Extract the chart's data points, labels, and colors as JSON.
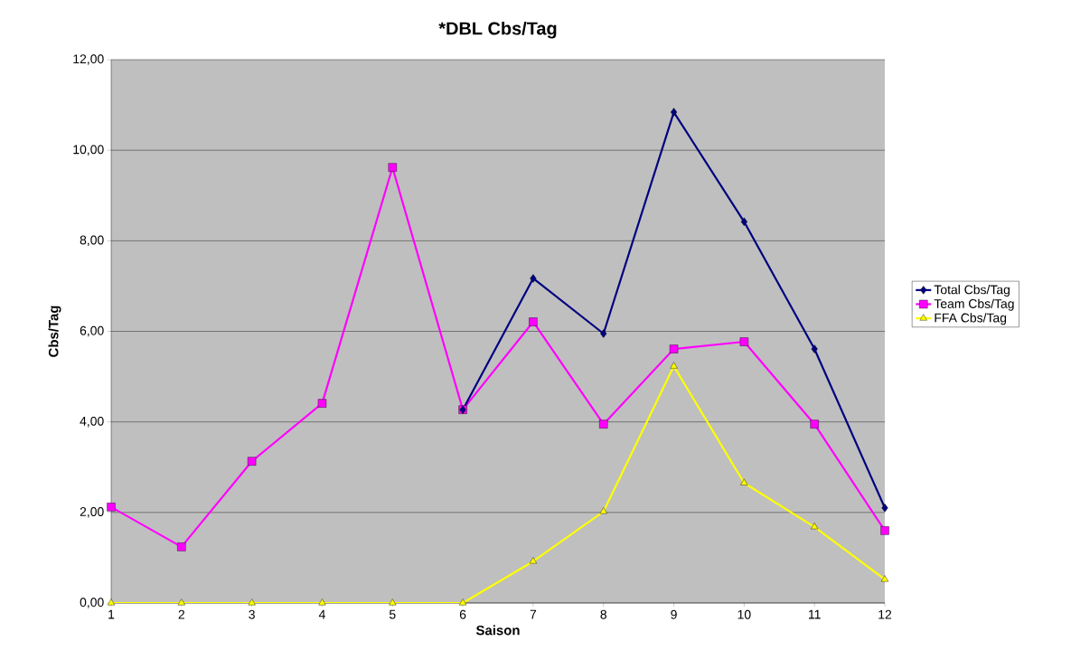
{
  "chart_data": {
    "type": "line",
    "title": "*DBL Cbs/Tag",
    "xlabel": "Saison",
    "ylabel": "Cbs/Tag",
    "categories": [
      "1",
      "2",
      "3",
      "4",
      "5",
      "6",
      "7",
      "8",
      "9",
      "10",
      "11",
      "12"
    ],
    "series": [
      {
        "name": "Total Cbs/Tag",
        "color": "#000080",
        "marker": "diamond",
        "values": [
          null,
          null,
          null,
          null,
          null,
          4.27,
          7.17,
          5.95,
          10.84,
          8.42,
          5.61,
          2.1
        ]
      },
      {
        "name": "Team Cbs/Tag",
        "color": "#ff00ff",
        "marker": "square",
        "values": [
          2.12,
          1.24,
          3.13,
          4.41,
          9.62,
          4.27,
          6.21,
          3.95,
          5.61,
          5.77,
          3.95,
          1.6
        ]
      },
      {
        "name": "FFA Cbs/Tag",
        "color": "#ffff00",
        "marker": "triangle",
        "values": [
          0,
          0,
          0,
          0,
          0,
          0,
          0.92,
          2.02,
          5.23,
          2.65,
          1.68,
          0.52
        ]
      }
    ],
    "ylim": [
      0,
      12
    ],
    "yticks": [
      {
        "value": 0,
        "label": "0,00"
      },
      {
        "value": 2,
        "label": "2,00"
      },
      {
        "value": 4,
        "label": "4,00"
      },
      {
        "value": 6,
        "label": "6,00"
      },
      {
        "value": 8,
        "label": "8,00"
      },
      {
        "value": 10,
        "label": "10,00"
      },
      {
        "value": 12,
        "label": "12,00"
      }
    ],
    "grid": "y",
    "legend": "right",
    "line_style": "solid"
  }
}
